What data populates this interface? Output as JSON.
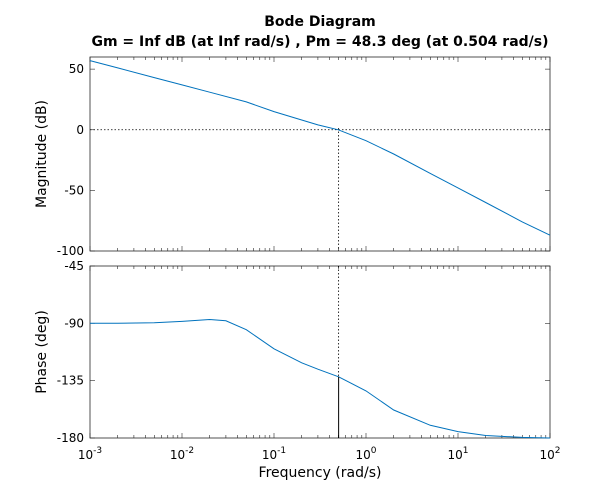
{
  "chart_data": {
    "type": "line",
    "title": "Bode Diagram",
    "subtitle": "Gm = Inf dB (at Inf rad/s) ,  Pm = 48.3 deg (at 0.504 rad/s)",
    "xlabel": "Frequency  (rad/s)",
    "x_scale": "log",
    "xlim": [
      0.001,
      100
    ],
    "x_ticks": [
      {
        "value": 0.001,
        "base": "10",
        "exp": "-3"
      },
      {
        "value": 0.01,
        "base": "10",
        "exp": "-2"
      },
      {
        "value": 0.1,
        "base": "10",
        "exp": "-1"
      },
      {
        "value": 1,
        "base": "10",
        "exp": "0"
      },
      {
        "value": 10,
        "base": "10",
        "exp": "1"
      },
      {
        "value": 100,
        "base": "10",
        "exp": "2"
      }
    ],
    "grid": false,
    "line_color": "#0072BD",
    "crossover_frequency": 0.504,
    "phase_margin_deg": 48.3,
    "phase_at_crossover": -131.7,
    "panels": [
      {
        "id": "magnitude",
        "ylabel": "Magnitude (dB)",
        "ylim": [
          -100,
          60
        ],
        "y_ticks": [
          50,
          0,
          -50,
          -100
        ],
        "y_tick_labels": [
          "50",
          "0",
          "-50",
          "-100"
        ],
        "reference_line": 0,
        "series": [
          {
            "x": [
              0.001,
              0.002,
              0.005,
              0.01,
              0.02,
              0.05,
              0.1,
              0.2,
              0.3,
              0.5,
              1,
              2,
              5,
              10,
              20,
              50,
              100
            ],
            "y": [
              57,
              51,
              43,
              37,
              31,
              23,
              15,
              8,
              4,
              0,
              -9,
              -20,
              -36,
              -48,
              -60,
              -76,
              -87
            ]
          }
        ]
      },
      {
        "id": "phase",
        "ylabel": "Phase (deg)",
        "ylim": [
          -180,
          -45
        ],
        "y_ticks": [
          -45,
          -90,
          -135,
          -180
        ],
        "y_tick_labels": [
          "-45",
          "-90",
          "-135",
          "-180"
        ],
        "series": [
          {
            "x": [
              0.001,
              0.002,
              0.005,
              0.01,
              0.02,
              0.03,
              0.05,
              0.1,
              0.2,
              0.3,
              0.504,
              1,
              2,
              5,
              10,
              20,
              50,
              100
            ],
            "y": [
              -90,
              -90,
              -89.5,
              -88.5,
              -87,
              -88,
              -95,
              -110,
              -121,
              -126,
              -132,
              -143,
              -158,
              -170,
              -175,
              -178,
              -179.5,
              -180
            ]
          }
        ]
      }
    ]
  }
}
